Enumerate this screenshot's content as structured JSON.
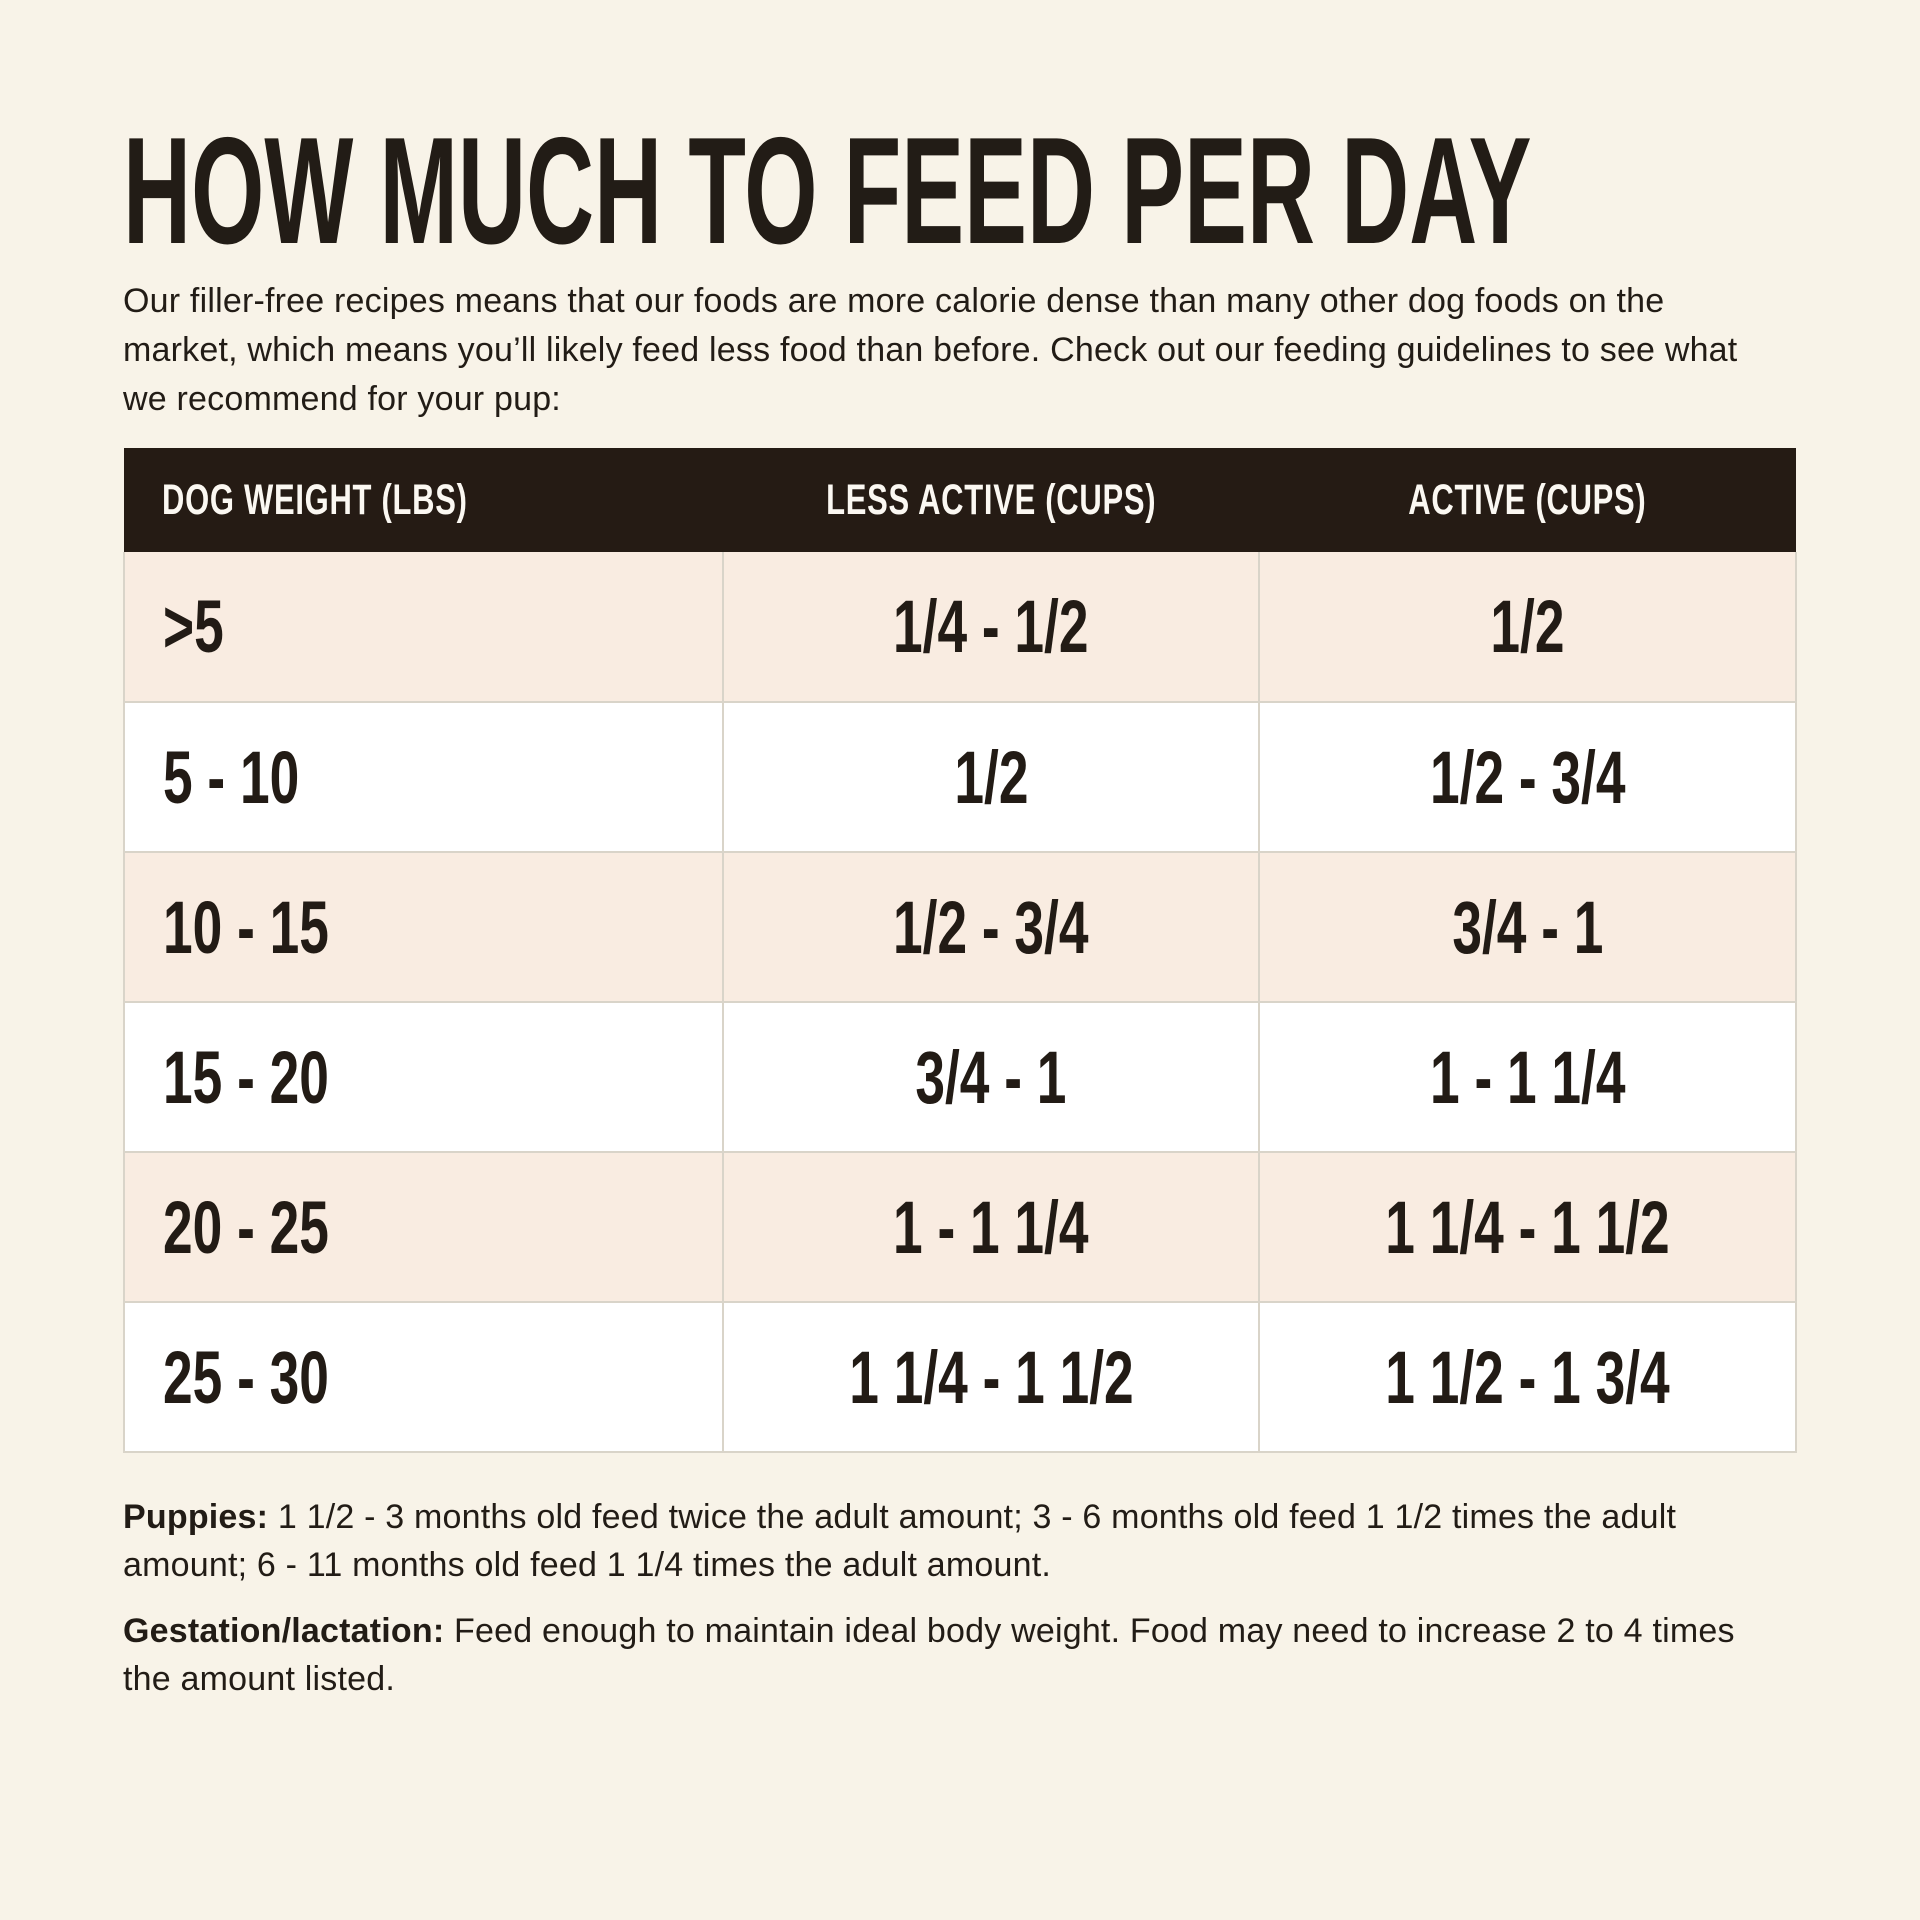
{
  "title": "HOW MUCH TO FEED PER DAY",
  "intro": "Our filler-free recipes means that our foods are more calorie dense than many other dog foods on the market, which means you’ll likely feed less food than before. Check out our feeding guidelines to see what we recommend for your pup:",
  "table": {
    "columns": [
      "DOG WEIGHT (LBS)",
      "LESS ACTIVE (CUPS)",
      "ACTIVE (CUPS)"
    ],
    "rows": [
      {
        "weight": ">5",
        "less_active": "1/4 - 1/2",
        "active": "1/2"
      },
      {
        "weight": "5 - 10",
        "less_active": "1/2",
        "active": "1/2 - 3/4"
      },
      {
        "weight": "10 - 15",
        "less_active": "1/2 - 3/4",
        "active": "3/4 - 1"
      },
      {
        "weight": "15 - 20",
        "less_active": "3/4 - 1",
        "active": "1 - 1 1/4"
      },
      {
        "weight": "20 - 25",
        "less_active": "1 - 1 1/4",
        "active": "1 1/4 - 1 1/2"
      },
      {
        "weight": "25 - 30",
        "less_active": "1 1/4 - 1 1/2",
        "active": "1 1/2 - 1 3/4"
      }
    ]
  },
  "notes": [
    {
      "label": "Puppies:",
      "text": "1 1/2 - 3 months old feed twice the adult amount; 3 - 6 months old feed 1 1/2 times the adult amount; 6 - 11 months old feed 1 1/4 times the adult amount."
    },
    {
      "label": "Gestation/lactation:",
      "text": "Feed enough to maintain ideal body weight. Food may need to increase 2 to 4 times the amount listed."
    }
  ],
  "colors": {
    "background": "#F8F3E8",
    "header_bg": "#251B14",
    "header_text": "#FBF8F2",
    "row_pink": "#F9ECE1",
    "row_white": "#FFFFFF",
    "divider": "#D9D4C9",
    "text": "#221C16"
  }
}
